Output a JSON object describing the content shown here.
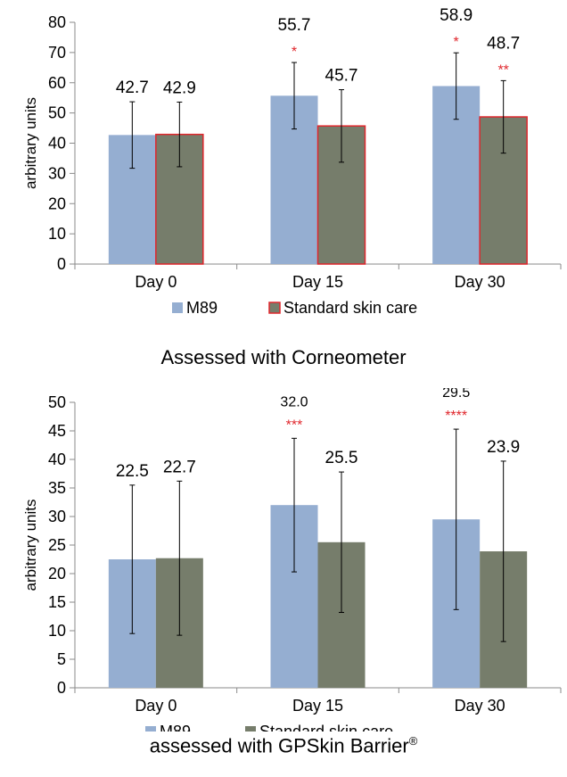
{
  "chart_data": [
    {
      "type": "bar",
      "title": "Assessed with Corneometer",
      "ylabel": "arbitrary units",
      "xlabel": "",
      "ylim": [
        0,
        80
      ],
      "yticks": [
        0,
        10,
        20,
        30,
        40,
        50,
        60,
        70,
        80
      ],
      "categories": [
        "Day 0",
        "Day 15",
        "Day 30"
      ],
      "legend_position": "bottom",
      "series": [
        {
          "name": "M89",
          "color": "#95aed1",
          "values": [
            42.7,
            55.7,
            58.9
          ],
          "value_labels": [
            "42.7",
            "55.7",
            "58.9"
          ],
          "error": [
            11,
            11,
            11
          ],
          "significance": [
            "",
            "*",
            "*"
          ]
        },
        {
          "name": "Standard skin care",
          "color": "#767d6b",
          "edge_color": "#e0262c",
          "values": [
            42.9,
            45.7,
            48.7
          ],
          "value_labels": [
            "42.9",
            "45.7",
            "48.7"
          ],
          "error": [
            10.7,
            12,
            12
          ],
          "significance": [
            "",
            "",
            "**"
          ]
        }
      ]
    },
    {
      "type": "bar",
      "title": "assessed with GPSkin Barrier",
      "title_superscript": "®",
      "ylabel": "arbitrary units",
      "xlabel": "",
      "ylim": [
        0,
        50
      ],
      "yticks": [
        0,
        5,
        10,
        15,
        20,
        25,
        30,
        35,
        40,
        45,
        50
      ],
      "categories": [
        "Day 0",
        "Day 15",
        "Day 30"
      ],
      "legend_position": "bottom",
      "series": [
        {
          "name": "M89",
          "color": "#95aed1",
          "values": [
            22.5,
            32.0,
            29.5
          ],
          "value_labels": [
            "22.5",
            "32.0",
            "29.5"
          ],
          "error": [
            13,
            11.7,
            15.8
          ],
          "significance": [
            "",
            "***",
            "****"
          ]
        },
        {
          "name": "Standard skin care",
          "color": "#767d6b",
          "values": [
            22.7,
            25.5,
            23.9
          ],
          "value_labels": [
            "22.7",
            "25.5",
            "23.9"
          ],
          "error": [
            13.5,
            12.3,
            15.8
          ],
          "significance": [
            "",
            "",
            ""
          ]
        }
      ]
    }
  ]
}
